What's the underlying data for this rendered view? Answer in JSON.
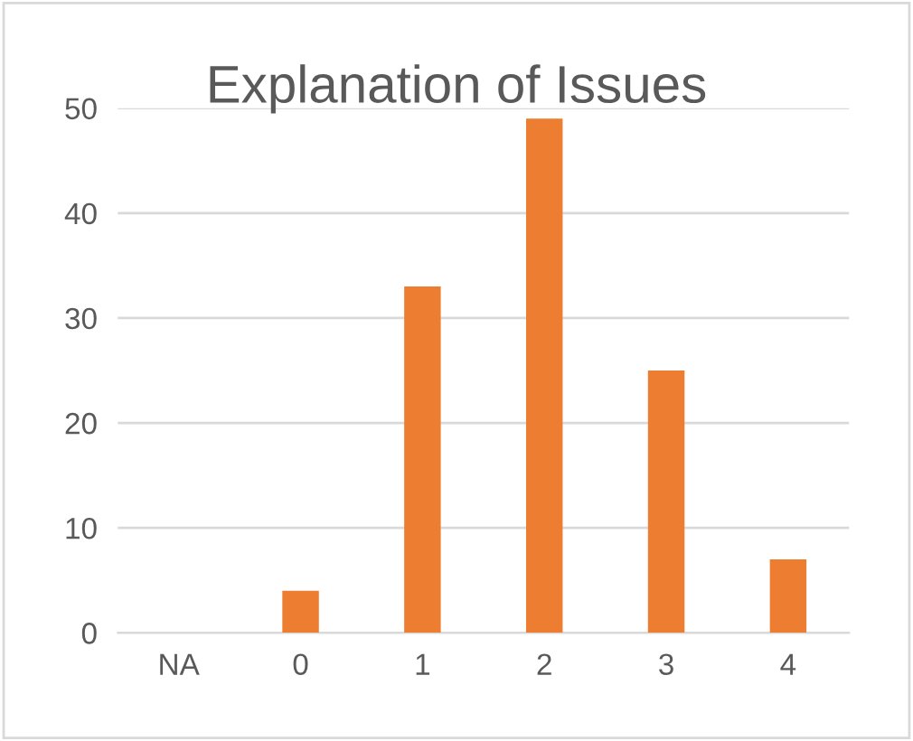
{
  "chart_data": {
    "type": "bar",
    "title": "Explanation of Issues",
    "categories": [
      "NA",
      "0",
      "1",
      "2",
      "3",
      "4"
    ],
    "values": [
      0,
      4,
      33,
      49,
      25,
      7
    ],
    "color": "#ed7d31",
    "ylim": [
      0,
      50
    ],
    "yticks": [
      0,
      10,
      20,
      30,
      40,
      50
    ],
    "grid": "y",
    "legend": false
  }
}
